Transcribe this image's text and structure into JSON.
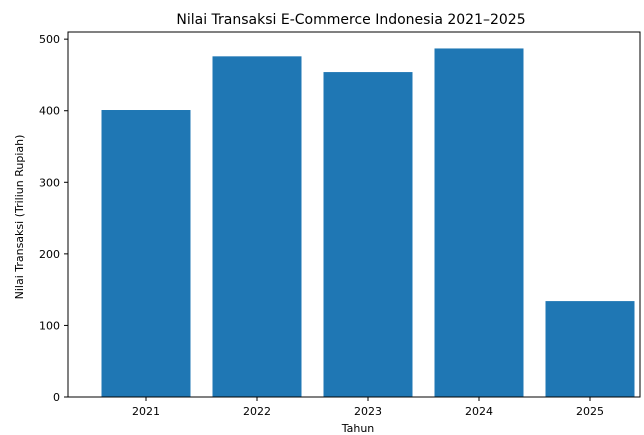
{
  "chart_data": {
    "type": "bar",
    "title": "Nilai Transaksi E-Commerce Indonesia 2021–2025",
    "xlabel": "Tahun",
    "ylabel": "Nilai Transaksi (Triliun Rupiah)",
    "categories": [
      "2021",
      "2022",
      "2023",
      "2024",
      "2025"
    ],
    "values": [
      401,
      476,
      454,
      487,
      134
    ],
    "ylim": [
      0,
      510
    ],
    "yticks": [
      0,
      100,
      200,
      300,
      400,
      500
    ],
    "grid": false,
    "bar_color": "#1f77b4"
  }
}
